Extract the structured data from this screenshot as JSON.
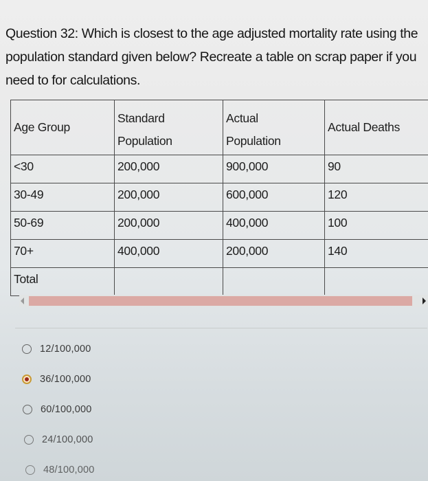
{
  "question": {
    "text": "Question 32: Which is closest to the age adjusted mortality rate using the population standard given below? Recreate a table on scrap paper if you need to for calculations."
  },
  "table": {
    "headers": {
      "age_group": "Age Group",
      "standard_population_line1": "Standard",
      "standard_population_line2": "Population",
      "actual_population_line1": "Actual",
      "actual_population_line2": "Population",
      "actual_deaths": "Actual Deaths"
    },
    "rows": [
      {
        "age_group": "<30",
        "standard_population": "200,000",
        "actual_population": "900,000",
        "actual_deaths": "90"
      },
      {
        "age_group": "30-49",
        "standard_population": "200,000",
        "actual_population": "600,000",
        "actual_deaths": "120"
      },
      {
        "age_group": "50-69",
        "standard_population": "200,000",
        "actual_population": "400,000",
        "actual_deaths": "100"
      },
      {
        "age_group": "70+",
        "standard_population": "400,000",
        "actual_population": "200,000",
        "actual_deaths": "140"
      },
      {
        "age_group": "Total",
        "standard_population": "",
        "actual_population": "",
        "actual_deaths": ""
      }
    ]
  },
  "scrollbar": {
    "left_arrow_icon": "triangle-left",
    "right_arrow_icon": "triangle-right",
    "thumb_color": "#dba9a4"
  },
  "answer_options": [
    {
      "label": "12/100,000",
      "selected": false
    },
    {
      "label": "36/100,000",
      "selected": true
    },
    {
      "label": "60/100,000",
      "selected": false
    },
    {
      "label": "24/100,000",
      "selected": false
    },
    {
      "label": "48/100,000",
      "selected": false
    }
  ],
  "colors": {
    "selected_radio_fill": "#9c2a1c",
    "selected_radio_ring": "#c89a35"
  }
}
